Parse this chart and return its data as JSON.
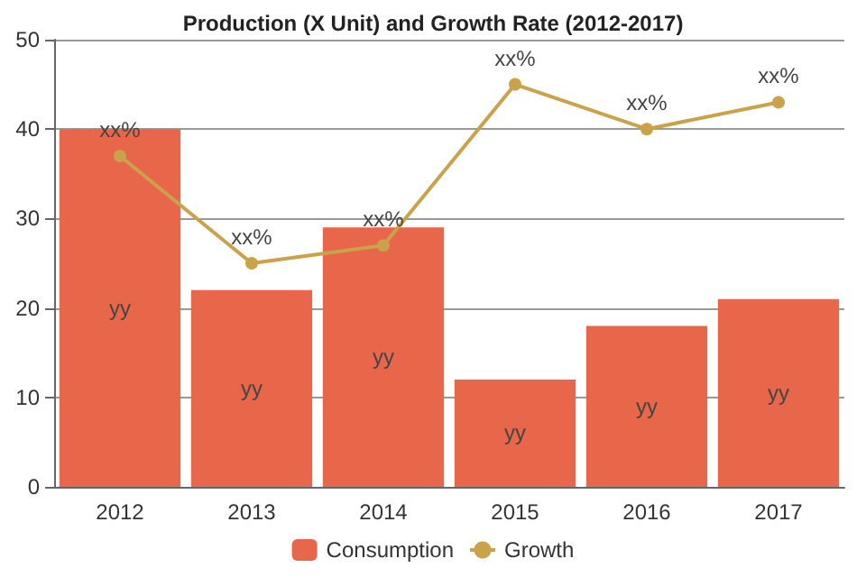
{
  "chart_data": {
    "type": "bar",
    "title": "Production (X Unit) and Growth Rate (2012-2017)",
    "categories": [
      "2012",
      "2013",
      "2014",
      "2015",
      "2016",
      "2017"
    ],
    "series": [
      {
        "name": "Consumption",
        "color": "#e8664a",
        "values": [
          40,
          22,
          29,
          12,
          18,
          21
        ],
        "value_labels": [
          "yy",
          "yy",
          "yy",
          "yy",
          "yy",
          "yy"
        ]
      },
      {
        "name": "Growth",
        "type": "line",
        "color": "#c9a24a",
        "values": [
          37,
          25,
          27,
          45,
          40,
          43
        ],
        "value_labels": [
          "xx%",
          "xx%",
          "xx%",
          "xx%",
          "xx%",
          "xx%"
        ],
        "marker": "circle"
      }
    ],
    "ylim": [
      0,
      50
    ],
    "yticks": [
      0,
      10,
      20,
      30,
      40,
      50
    ],
    "grid": "y",
    "legend": "bottom"
  }
}
